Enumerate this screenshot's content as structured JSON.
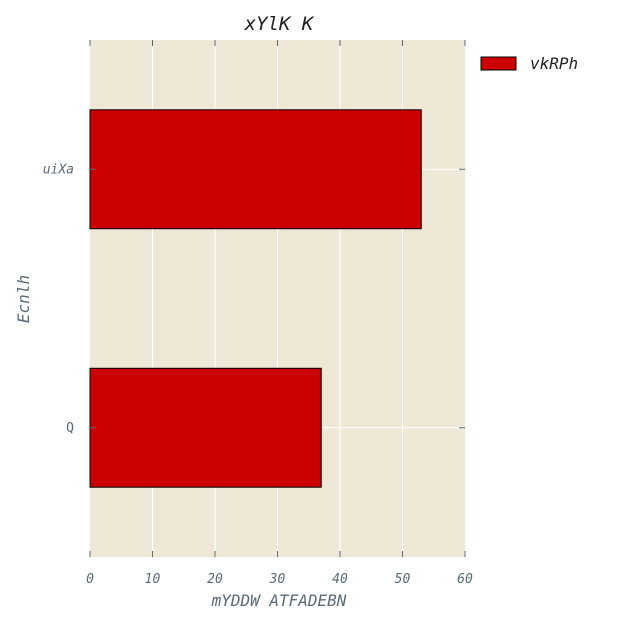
{
  "chart_data": {
    "type": "bar",
    "orientation": "horizontal",
    "title": "xYlK K",
    "xlabel": "mYDDW ATFADEBN",
    "ylabel": "Ecnlh",
    "categories": [
      "uiXa",
      "Q"
    ],
    "series": [
      {
        "name": "vkRPh",
        "values": [
          53,
          37
        ]
      }
    ],
    "xlim": [
      0,
      60
    ],
    "xticks": [
      0,
      10,
      20,
      30,
      40,
      50,
      60
    ],
    "grid": true,
    "legend_position": "outside-top-right",
    "colors": {
      "bar": "#cc0000",
      "bar_edge": "#000000",
      "plot_background": "#efe8d6",
      "grid": "#ffffff",
      "text": "#5a6b78"
    }
  }
}
